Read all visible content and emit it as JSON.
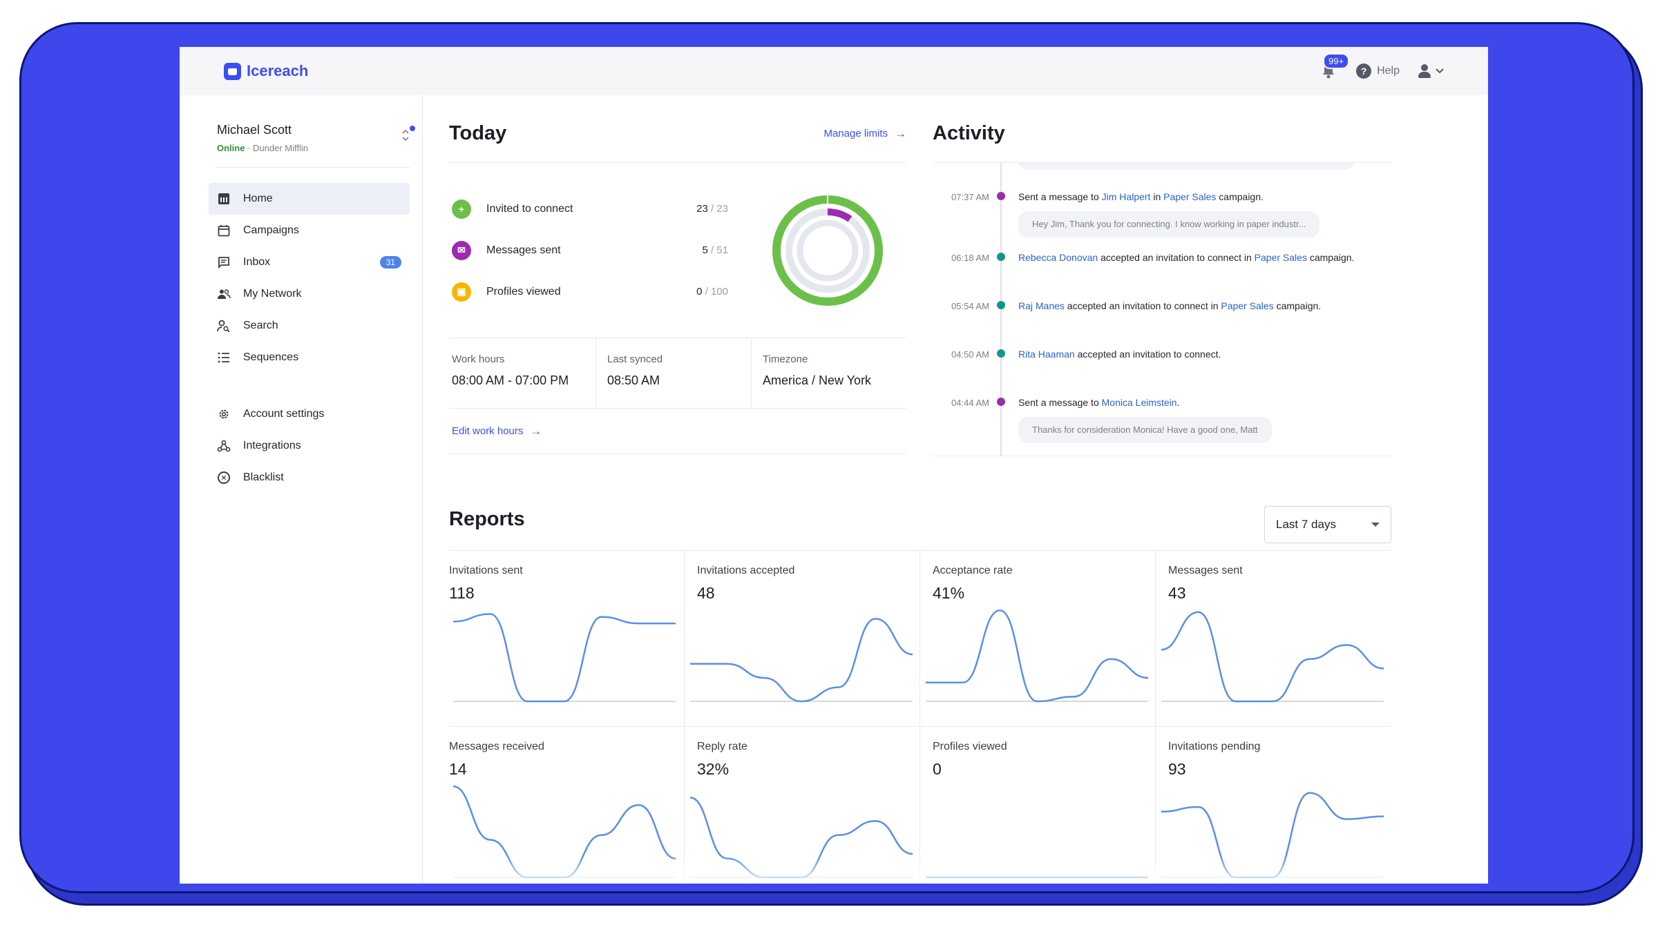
{
  "app": {
    "name": "Icereach",
    "notifications": "99+",
    "help": "Help"
  },
  "profile": {
    "name": "Michael Scott",
    "status": "Online",
    "company": "· Dunder Mifflin"
  },
  "sidebar": {
    "items": [
      {
        "label": "Home",
        "icon": "chart-icon"
      },
      {
        "label": "Campaigns",
        "icon": "calendar-icon"
      },
      {
        "label": "Inbox",
        "icon": "message-icon",
        "badge": "31"
      },
      {
        "label": "My Network",
        "icon": "people-icon"
      },
      {
        "label": "Search",
        "icon": "person-search-icon"
      },
      {
        "label": "Sequences",
        "icon": "list-icon"
      }
    ],
    "secondary": [
      {
        "label": "Account settings",
        "icon": "gear-icon"
      },
      {
        "label": "Integrations",
        "icon": "webhook-icon"
      },
      {
        "label": "Blacklist",
        "icon": "circle-x-icon"
      }
    ]
  },
  "today": {
    "title": "Today",
    "manage_limits": "Manage limits",
    "stats": [
      {
        "label": "Invited to connect",
        "value": "23",
        "max": "/ 23",
        "color": "#6cc04a"
      },
      {
        "label": "Messages sent",
        "value": "5",
        "max": "/ 51",
        "color": "#9c2bb0"
      },
      {
        "label": "Profiles viewed",
        "value": "0",
        "max": "/ 100",
        "color": "#f2b705"
      }
    ],
    "ring": {
      "invited_fraction": 1.0,
      "messages_fraction": 0.098,
      "profiles_fraction": 0.0
    },
    "work_hours_label": "Work hours",
    "work_hours_value": "08:00 AM - 07:00 PM",
    "last_synced_label": "Last synced",
    "last_synced_value": "08:50 AM",
    "timezone_label": "Timezone",
    "timezone_value": "America / New York",
    "edit_hours": "Edit work hours"
  },
  "activity": {
    "title": "Activity",
    "items": [
      {
        "time": "07:37 AM",
        "dot": "#9c2bb0",
        "pre": "Sent a message to ",
        "link1": "Jim Halpert",
        "mid": " in ",
        "link2": "Paper Sales",
        "post": " campaign.",
        "message": "Hey Jim, Thank you for connecting. I know working in paper industr..."
      },
      {
        "time": "06:18 AM",
        "dot": "#13958a",
        "pre": "",
        "link1": "Rebecca Donovan",
        "mid": " accepted an invitation to connect in ",
        "link2": "Paper Sales",
        "post": " campaign.",
        "message": ""
      },
      {
        "time": "05:54 AM",
        "dot": "#13958a",
        "pre": "",
        "link1": "Raj Manes",
        "mid": " accepted an invitation to connect in ",
        "link2": "Paper Sales",
        "post": " campaign.",
        "message": ""
      },
      {
        "time": "04:50 AM",
        "dot": "#13958a",
        "pre": "",
        "link1": "Rita Haaman",
        "mid": " accepted an invitation to connect.",
        "link2": "",
        "post": "",
        "message": ""
      },
      {
        "time": "04:44 AM",
        "dot": "#9c2bb0",
        "pre": "Sent a message to ",
        "link1": "Monica Leimstein",
        "mid": ".",
        "link2": "",
        "post": "",
        "message": "Thanks for consideration Monica! Have a good one, Matt"
      }
    ]
  },
  "reports": {
    "title": "Reports",
    "range": "Last 7 days",
    "cards": [
      {
        "label": "Invitations sent",
        "value": "118",
        "trend": [
          0.85,
          0.93,
          0.0,
          0.0,
          0.9,
          0.83,
          0.83
        ]
      },
      {
        "label": "Invitations accepted",
        "value": "48",
        "trend": [
          0.4,
          0.4,
          0.25,
          0.0,
          0.15,
          0.88,
          0.5
        ]
      },
      {
        "label": "Acceptance rate",
        "value": "41%",
        "trend": [
          0.2,
          0.2,
          0.97,
          0.0,
          0.05,
          0.45,
          0.25
        ]
      },
      {
        "label": "Messages sent",
        "value": "43",
        "trend": [
          0.55,
          0.95,
          0.0,
          0.0,
          0.45,
          0.6,
          0.35
        ]
      },
      {
        "label": "Messages received",
        "value": "14",
        "trend": [
          0.97,
          0.4,
          0.0,
          0.0,
          0.45,
          0.77,
          0.2
        ]
      },
      {
        "label": "Reply rate",
        "value": "32%",
        "trend": [
          0.85,
          0.2,
          0.0,
          0.0,
          0.45,
          0.6,
          0.25
        ]
      },
      {
        "label": "Profiles viewed",
        "value": "0",
        "trend": [
          0.0,
          0.0,
          0.0,
          0.0,
          0.0,
          0.0,
          0.0
        ]
      },
      {
        "label": "Invitations pending",
        "value": "93",
        "trend": [
          0.7,
          0.75,
          0.0,
          0.0,
          0.9,
          0.62,
          0.65
        ]
      }
    ]
  },
  "colors": {
    "accent": "#3d4ef0",
    "spark": "#5b8ee6",
    "baseline": "#c9ccd4"
  }
}
